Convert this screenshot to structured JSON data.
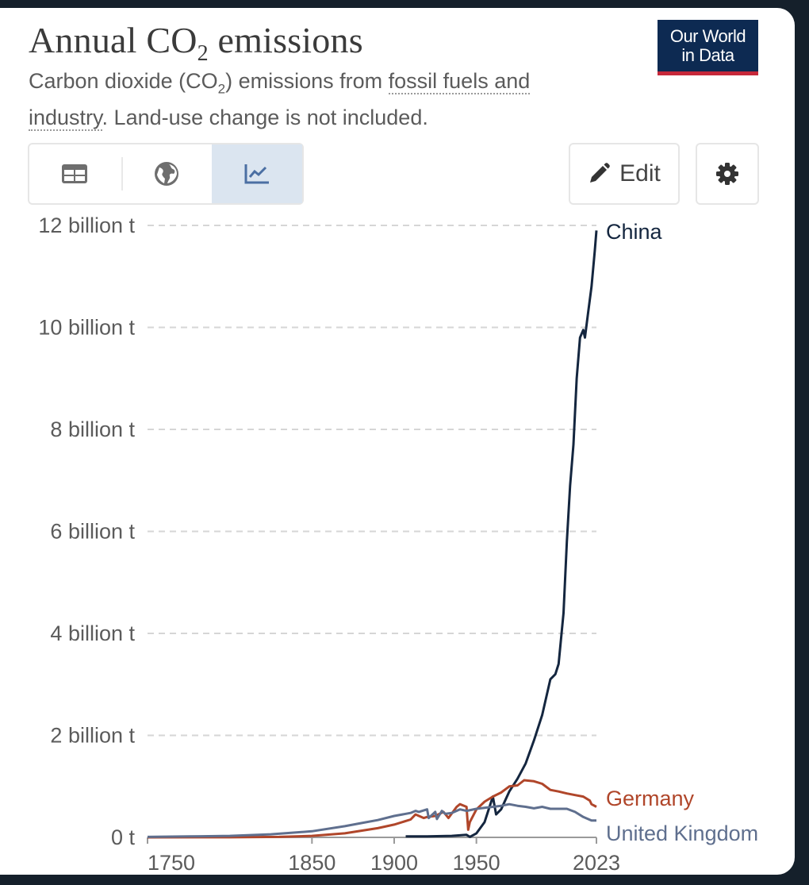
{
  "header": {
    "title_main": "Annual CO",
    "title_sub": "2",
    "title_end": " emissions",
    "subtitle_a": "Carbon dioxide (CO",
    "subtitle_sub": "2",
    "subtitle_b": ") emissions from ",
    "subtitle_link": "fossil fuels and industry",
    "subtitle_c": ". Land-use change is not included.",
    "logo_line1": "Our World",
    "logo_line2": "in Data"
  },
  "toolbar": {
    "table_tab_icon": "table-icon",
    "map_tab_icon": "globe-icon",
    "chart_tab_icon": "line-chart-icon",
    "edit_label": "Edit",
    "edit_icon": "pencil-icon",
    "settings_icon": "gear-icon"
  },
  "colors": {
    "china": "#14263f",
    "germany": "#b0462a",
    "uk": "#5f6f8e",
    "logo_bg": "#0d2a52",
    "logo_accent": "#c6283a",
    "active_tab": "#dbe5f0"
  },
  "chart_data": {
    "type": "line",
    "ylim": [
      0,
      12
    ],
    "xlim": [
      1750,
      2023
    ],
    "y_ticks": [
      {
        "value": 0,
        "label": "0 t"
      },
      {
        "value": 2,
        "label": "2 billion t"
      },
      {
        "value": 4,
        "label": "4 billion t"
      },
      {
        "value": 6,
        "label": "6 billion t"
      },
      {
        "value": 8,
        "label": "8 billion t"
      },
      {
        "value": 10,
        "label": "10 billion t"
      },
      {
        "value": 12,
        "label": "12 billion t"
      }
    ],
    "x_ticks": [
      {
        "value": 1750,
        "label": "1750"
      },
      {
        "value": 1850,
        "label": "1850"
      },
      {
        "value": 1900,
        "label": "1900"
      },
      {
        "value": 1950,
        "label": "1950"
      },
      {
        "value": 2023,
        "label": "2023"
      }
    ],
    "grid": "horizontal dashed",
    "series": [
      {
        "name": "China",
        "color": "#14263f",
        "x": [
          1907,
          1920,
          1935,
          1944,
          1946,
          1950,
          1955,
          1958,
          1960,
          1962,
          1965,
          1970,
          1975,
          1980,
          1985,
          1990,
          1995,
          1998,
          2000,
          2003,
          2005,
          2007,
          2009,
          2011,
          2013,
          2015,
          2016,
          2018,
          2020,
          2022,
          2023
        ],
        "y": [
          0.02,
          0.02,
          0.03,
          0.05,
          0.01,
          0.08,
          0.3,
          0.6,
          0.8,
          0.45,
          0.55,
          0.9,
          1.15,
          1.45,
          1.9,
          2.4,
          3.1,
          3.2,
          3.4,
          4.4,
          5.8,
          6.9,
          7.7,
          9.0,
          9.8,
          9.95,
          9.8,
          10.3,
          10.8,
          11.5,
          11.9
        ]
      },
      {
        "name": "Germany",
        "color": "#b0462a",
        "x": [
          1750,
          1800,
          1830,
          1850,
          1870,
          1890,
          1900,
          1910,
          1913,
          1918,
          1920,
          1925,
          1930,
          1933,
          1938,
          1940,
          1944,
          1945,
          1946,
          1950,
          1955,
          1960,
          1965,
          1970,
          1975,
          1979,
          1985,
          1990,
          1995,
          2000,
          2005,
          2010,
          2015,
          2019,
          2020,
          2023
        ],
        "y": [
          0,
          0.002,
          0.01,
          0.03,
          0.08,
          0.18,
          0.25,
          0.35,
          0.45,
          0.38,
          0.4,
          0.42,
          0.5,
          0.38,
          0.6,
          0.65,
          0.6,
          0.15,
          0.3,
          0.55,
          0.7,
          0.8,
          0.88,
          1.0,
          1.02,
          1.12,
          1.1,
          1.05,
          0.93,
          0.9,
          0.86,
          0.83,
          0.8,
          0.72,
          0.65,
          0.6
        ]
      },
      {
        "name": "United Kingdom",
        "color": "#5f6f8e",
        "x": [
          1750,
          1775,
          1800,
          1825,
          1850,
          1870,
          1880,
          1890,
          1900,
          1910,
          1913,
          1915,
          1920,
          1921,
          1925,
          1926,
          1929,
          1931,
          1935,
          1940,
          1944,
          1950,
          1955,
          1960,
          1965,
          1970,
          1975,
          1980,
          1985,
          1990,
          1995,
          2000,
          2005,
          2010,
          2015,
          2020,
          2023
        ],
        "y": [
          0.01,
          0.018,
          0.03,
          0.06,
          0.12,
          0.22,
          0.28,
          0.34,
          0.42,
          0.48,
          0.52,
          0.5,
          0.55,
          0.38,
          0.5,
          0.36,
          0.52,
          0.46,
          0.48,
          0.55,
          0.52,
          0.56,
          0.58,
          0.6,
          0.62,
          0.65,
          0.62,
          0.6,
          0.57,
          0.6,
          0.56,
          0.56,
          0.56,
          0.5,
          0.4,
          0.33,
          0.33
        ]
      }
    ]
  }
}
